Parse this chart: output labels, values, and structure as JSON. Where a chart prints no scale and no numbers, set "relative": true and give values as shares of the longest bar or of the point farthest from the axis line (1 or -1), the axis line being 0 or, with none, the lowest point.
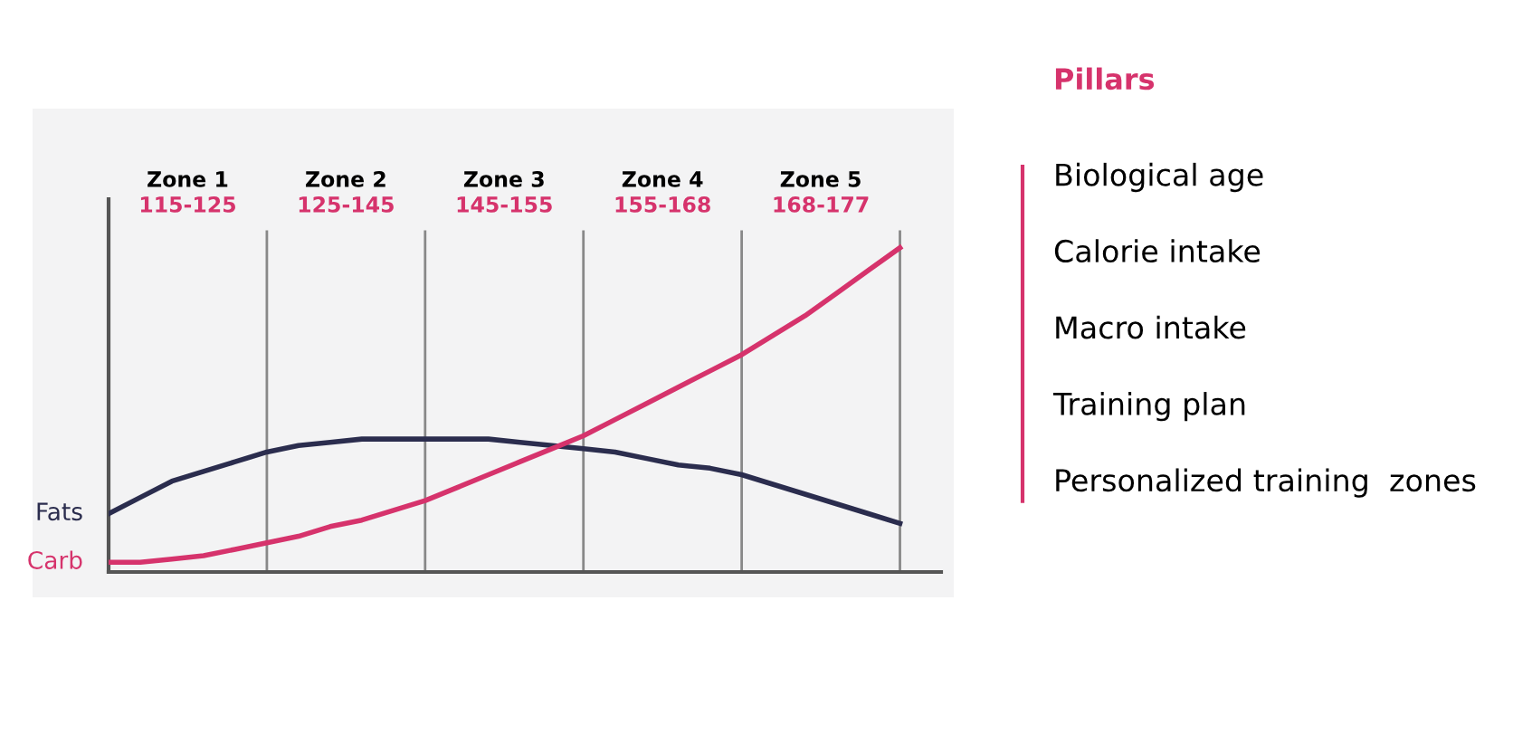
{
  "chart_data": [
    {
      "type": "line",
      "relative": true,
      "legend": false,
      "grid": "x",
      "marker": "none",
      "line_style": "solid",
      "categories": [
        null,
        null,
        null,
        null,
        null,
        null,
        null,
        null,
        null,
        null,
        null,
        null,
        null,
        null,
        null,
        null,
        null,
        null,
        null,
        null,
        null,
        null,
        null,
        null,
        null,
        null
      ],
      "series": [
        {
          "name": "Fats",
          "color": "#2b2d4e",
          "values": [
            0.18,
            0.23,
            0.28,
            0.31,
            0.34,
            0.37,
            0.39,
            0.4,
            0.41,
            0.41,
            0.41,
            0.41,
            0.41,
            0.4,
            0.39,
            0.38,
            0.37,
            0.35,
            0.33,
            0.32,
            0.3,
            0.27,
            0.24,
            0.21,
            0.18,
            0.15
          ]
        },
        {
          "name": "Carb",
          "color": "#d6336c",
          "values": [
            0.03,
            0.03,
            0.04,
            0.05,
            0.07,
            0.09,
            0.11,
            0.14,
            0.16,
            0.19,
            0.22,
            0.26,
            0.3,
            0.34,
            0.38,
            0.42,
            0.47,
            0.52,
            0.57,
            0.62,
            0.67,
            0.73,
            0.79,
            0.86,
            0.93,
            1.0
          ]
        }
      ],
      "annotations": [
        "Zone 1",
        "115-125",
        "Zone 2",
        "125-145",
        "Zone 3",
        "145-155",
        "Zone 4",
        "155-168",
        "Zone 5",
        "168-177"
      ]
    },
    {
      "type": "other",
      "title": "Pillars",
      "annotations": [
        "Biological age",
        "Calorie intake",
        "Macro intake",
        "Training plan",
        "Personalized training  zones"
      ]
    }
  ]
}
